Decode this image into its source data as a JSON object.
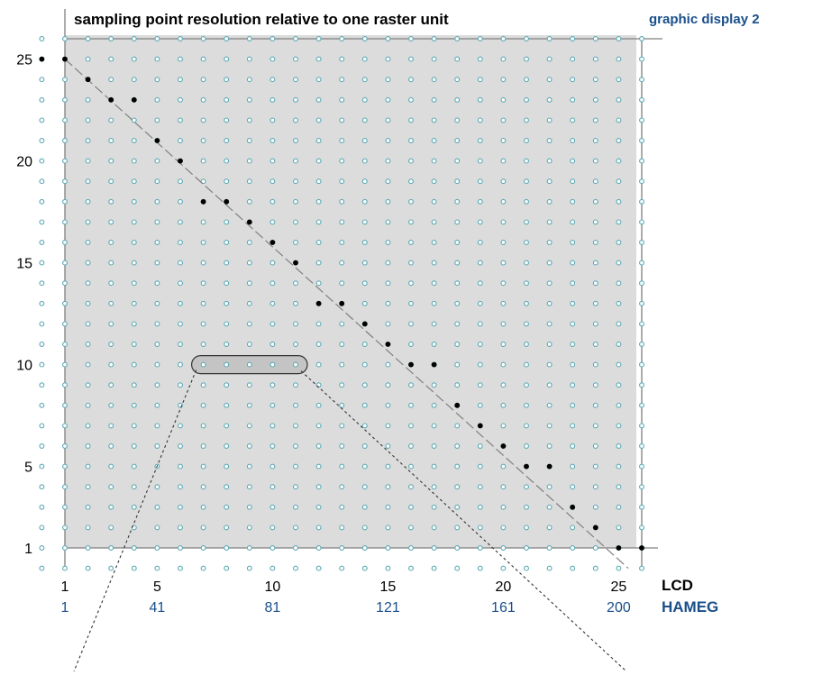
{
  "title": "sampling point resolution relative to one raster unit",
  "display_label": "graphic display 2",
  "colors": {
    "plot_background": "#dcdcdc",
    "grid_dot": "#5aaab4",
    "sample_dot": "#000000",
    "blue_text": "#1a4f8a",
    "diagonal": "#808080",
    "frame": "#808080"
  },
  "chart_data": {
    "type": "scatter",
    "grid": {
      "x_range": [
        1,
        26
      ],
      "y_range": [
        1,
        26
      ],
      "step": 1
    },
    "y_ticks": [
      {
        "value": 25,
        "label": "25"
      },
      {
        "value": 20,
        "label": "20"
      },
      {
        "value": 15,
        "label": "15"
      },
      {
        "value": 10,
        "label": "10"
      },
      {
        "value": 5,
        "label": "5"
      },
      {
        "value": 1,
        "label": "1"
      }
    ],
    "x_axis_lcd": {
      "name": "LCD",
      "ticks": [
        {
          "value": 1,
          "label": "1"
        },
        {
          "value": 5,
          "label": "5"
        },
        {
          "value": 10,
          "label": "10"
        },
        {
          "value": 15,
          "label": "15"
        },
        {
          "value": 20,
          "label": "20"
        },
        {
          "value": 25,
          "label": "25"
        }
      ]
    },
    "x_axis_hameg": {
      "name": "HAMEG",
      "ticks": [
        {
          "value": 1,
          "label": "1"
        },
        {
          "value": 5,
          "label": "41"
        },
        {
          "value": 10,
          "label": "81"
        },
        {
          "value": 15,
          "label": "121"
        },
        {
          "value": 20,
          "label": "161"
        },
        {
          "value": 25,
          "label": "200"
        }
      ]
    },
    "sample_points": [
      [
        1,
        25
      ],
      [
        2,
        24
      ],
      [
        3,
        23
      ],
      [
        4,
        23
      ],
      [
        5,
        21
      ],
      [
        6,
        20
      ],
      [
        7,
        18
      ],
      [
        8,
        18
      ],
      [
        9,
        17
      ],
      [
        10,
        16
      ],
      [
        11,
        15
      ],
      [
        12,
        13
      ],
      [
        13,
        13
      ],
      [
        14,
        12
      ],
      [
        15,
        11
      ],
      [
        16,
        10
      ],
      [
        17,
        10
      ],
      [
        18,
        8
      ],
      [
        19,
        7
      ],
      [
        20,
        6
      ],
      [
        21,
        5
      ],
      [
        22,
        5
      ],
      [
        23,
        3
      ],
      [
        24,
        2
      ],
      [
        25,
        1
      ]
    ],
    "edge_points": [
      [
        0,
        25
      ],
      [
        26,
        1
      ]
    ],
    "diagonal": {
      "from": [
        1,
        25
      ],
      "to": [
        26,
        0
      ]
    },
    "highlight": {
      "y": 10,
      "x_from": 7,
      "x_to": 11
    }
  }
}
